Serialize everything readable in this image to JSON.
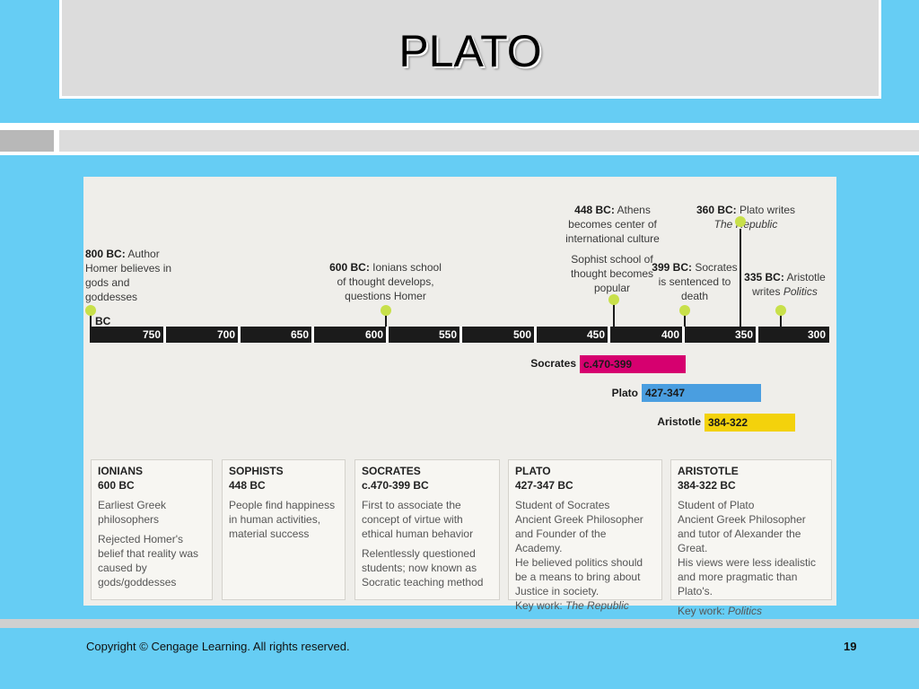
{
  "slide": {
    "title": "PLATO",
    "copyright": "Copyright © Cengage Learning. All rights reserved.",
    "page_number": "19"
  },
  "timeline": {
    "axis_label": "BC",
    "ticks": [
      "750",
      "700",
      "650",
      "600",
      "550",
      "500",
      "450",
      "400",
      "350",
      "300"
    ],
    "events": {
      "homer": {
        "date": "800 BC:",
        "text": "Author Homer believes in gods and goddesses"
      },
      "ionians": {
        "date": "600 BC:",
        "text": "Ionians school of thought develops, questions Homer"
      },
      "athens": {
        "date": "448 BC:",
        "text": "Athens becomes center of international culture"
      },
      "sophist": {
        "text": "Sophist school of thought becomes popular"
      },
      "republic": {
        "date": "360 BC:",
        "text": "Plato writes",
        "work": "The Republic"
      },
      "socrates_death": {
        "date": "399 BC:",
        "text": "Socrates is sentenced to death"
      },
      "aristotle_politics": {
        "date": "335 BC:",
        "text": "Aristotle writes",
        "work": "Politics"
      }
    },
    "lifespans": [
      {
        "name": "Socrates",
        "range": "c.470-399",
        "color": "#d6006f"
      },
      {
        "name": "Plato",
        "range": "427-347",
        "color": "#4a9ee0"
      },
      {
        "name": "Aristotle",
        "range": "384-322",
        "color": "#f3d20c"
      }
    ]
  },
  "cards": {
    "ionians": {
      "title": "IONIANS",
      "date": "600 BC",
      "p1": "Earliest Greek philosophers",
      "p2": "Rejected Homer's belief that reality was caused by gods/goddesses"
    },
    "sophists": {
      "title": "SOPHISTS",
      "date": "448 BC",
      "p1": "People find happiness in human activities, material success"
    },
    "socrates": {
      "title": "SOCRATES",
      "date": "c.470-399 BC",
      "p1": "First to associate the concept of virtue with ethical human behavior",
      "p2": "Relentlessly questioned students; now known as Socratic teaching method"
    },
    "plato": {
      "title": "PLATO",
      "date": "427-347 BC",
      "p1": "Student of Socrates",
      "p2": "Ancient Greek Philosopher and Founder of the Academy.",
      "p3": "He believed politics should be a means to bring about Justice in society.",
      "key_label": "Key work:",
      "key_work": "The Republic"
    },
    "aristotle": {
      "title": "ARISTOTLE",
      "date": "384-322 BC",
      "p1": "Student of Plato",
      "p2": "Ancient Greek Philosopher and tutor of Alexander the Great.",
      "p3": "His views were less idealistic and more pragmatic than Plato's.",
      "key_label": "Key work:",
      "key_work": "Politics"
    }
  },
  "colors": {
    "background": "#66cdf4",
    "title_box": "#dcdcdc",
    "dot": "#c8e04a",
    "axis": "#1b1b1b"
  }
}
